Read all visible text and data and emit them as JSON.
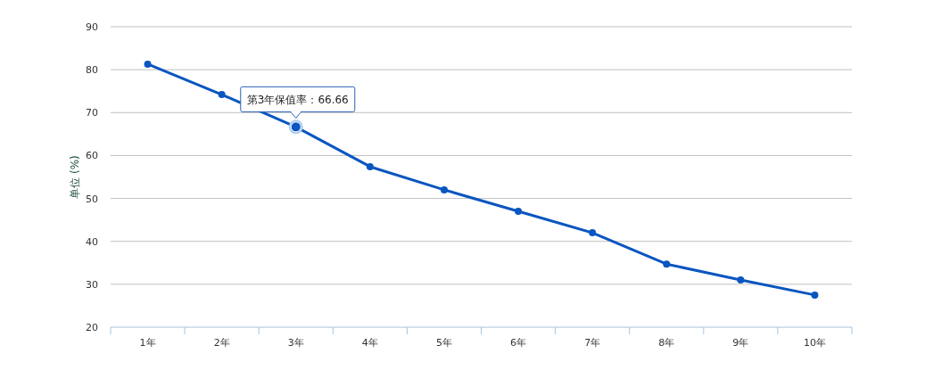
{
  "chart_data": {
    "type": "line",
    "categories": [
      "1年",
      "2年",
      "3年",
      "4年",
      "5年",
      "6年",
      "7年",
      "8年",
      "9年",
      "10年"
    ],
    "series": [
      {
        "color": "#0a56c0",
        "values": [
          81.3,
          74.2,
          66.66,
          57.4,
          52.0,
          47.0,
          42.0,
          34.7,
          31.0,
          27.5
        ]
      }
    ],
    "ylabel": "单位 (%)",
    "ylim": [
      20,
      90
    ],
    "yticks": [
      20,
      30,
      40,
      50,
      60,
      70,
      80,
      90
    ],
    "grid": "y",
    "marker": "circle",
    "line_style": "solid",
    "annotations": [
      {
        "text": "第3年保值率：66.66",
        "x": "3年",
        "y": 66.66
      }
    ]
  }
}
